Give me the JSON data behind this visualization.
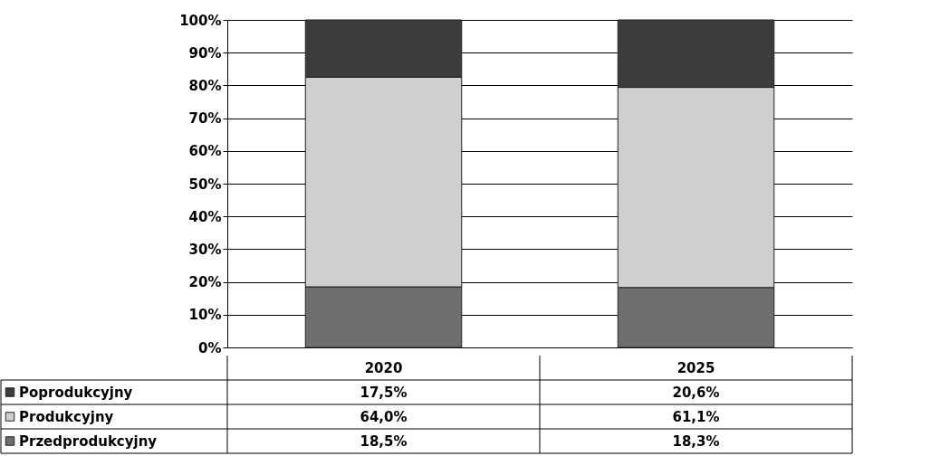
{
  "chart_data": {
    "type": "bar",
    "stacked": true,
    "categories": [
      "2020",
      "2025"
    ],
    "series": [
      {
        "name": "Przedprodukcyjny",
        "color": "#6e6e6e",
        "values": [
          18.5,
          18.3
        ],
        "value_labels": [
          "18,5%",
          "18,3%"
        ]
      },
      {
        "name": "Produkcyjny",
        "color": "#cfcfcf",
        "values": [
          64.0,
          61.1
        ],
        "value_labels": [
          "64,0%",
          "61,1%"
        ]
      },
      {
        "name": "Poprodukcyjny",
        "color": "#3c3c3c",
        "values": [
          17.5,
          20.6
        ],
        "value_labels": [
          "17,5%",
          "20,6%"
        ]
      }
    ],
    "ylim": [
      0,
      100
    ],
    "yticks": [
      {
        "value": 0,
        "label": "0%"
      },
      {
        "value": 10,
        "label": "10%"
      },
      {
        "value": 20,
        "label": "20%"
      },
      {
        "value": 30,
        "label": "30%"
      },
      {
        "value": 40,
        "label": "40%"
      },
      {
        "value": 50,
        "label": "50%"
      },
      {
        "value": 60,
        "label": "60%"
      },
      {
        "value": 70,
        "label": "70%"
      },
      {
        "value": 80,
        "label": "80%"
      },
      {
        "value": 90,
        "label": "90%"
      },
      {
        "value": 100,
        "label": "100%"
      }
    ],
    "grid": "y",
    "legend": "bottom left"
  }
}
